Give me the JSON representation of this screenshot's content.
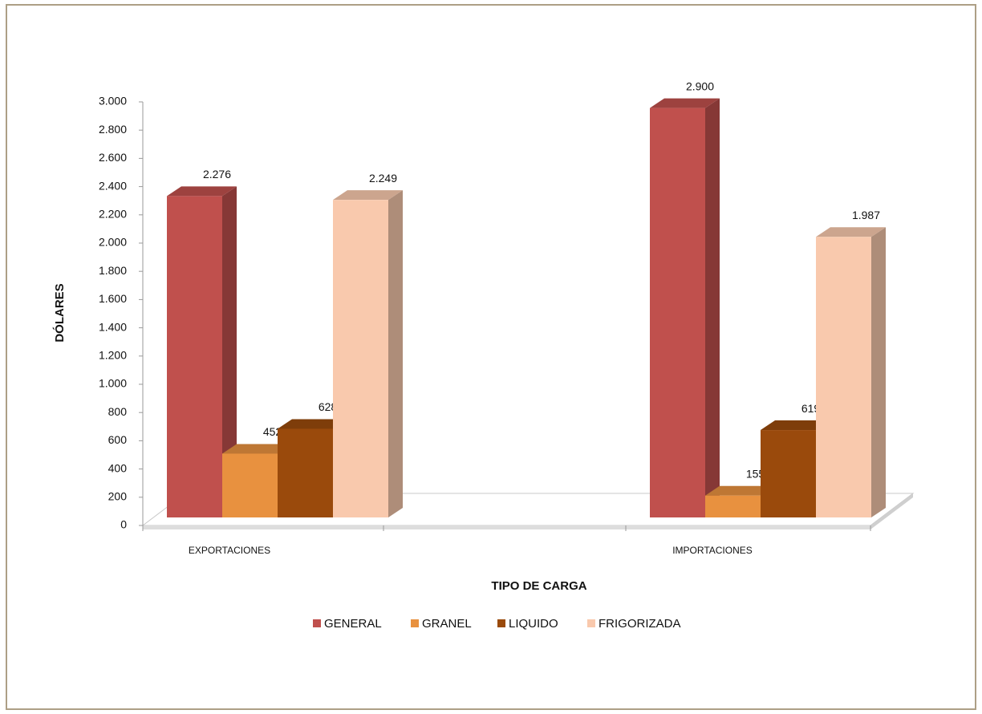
{
  "chart_data": {
    "type": "bar3d",
    "x_label": "TIPO DE CARGA",
    "y_label": "DÓLARES",
    "categories": [
      "EXPORTACIONES",
      "IMPORTACIONES"
    ],
    "series": [
      {
        "name": "GENERAL",
        "color": "#c0504d",
        "values": [
          2276,
          2900
        ],
        "value_labels": [
          "2.276",
          "2.900"
        ]
      },
      {
        "name": "GRANEL",
        "color": "#e8913f",
        "values": [
          452,
          155
        ],
        "value_labels": [
          "452",
          "155"
        ]
      },
      {
        "name": "LIQUIDO",
        "color": "#9a4a0c",
        "values": [
          628,
          619
        ],
        "value_labels": [
          "628",
          "619"
        ]
      },
      {
        "name": "FRIGORIZADA",
        "color": "#f9c9ad",
        "values": [
          2249,
          1987
        ],
        "value_labels": [
          "2.249",
          "1.987"
        ]
      }
    ],
    "ylim": [
      0,
      3000
    ],
    "yticks": [
      0,
      200,
      400,
      600,
      800,
      {
        "value": 1000,
        "label": "1.000"
      },
      {
        "value": 1200,
        "label": "1.200"
      },
      {
        "value": 1400,
        "label": "1.400"
      },
      {
        "value": 1600,
        "label": "1.600"
      },
      {
        "value": 1800,
        "label": "1.800"
      },
      {
        "value": 2000,
        "label": "2.000"
      },
      {
        "value": 2200,
        "label": "2.200"
      },
      {
        "value": 2400,
        "label": "2.400"
      },
      {
        "value": 2600,
        "label": "2.600"
      },
      {
        "value": 2800,
        "label": "2.800"
      },
      {
        "value": 3000,
        "label": "3.000"
      }
    ],
    "grid": false,
    "legend": "bottom"
  }
}
